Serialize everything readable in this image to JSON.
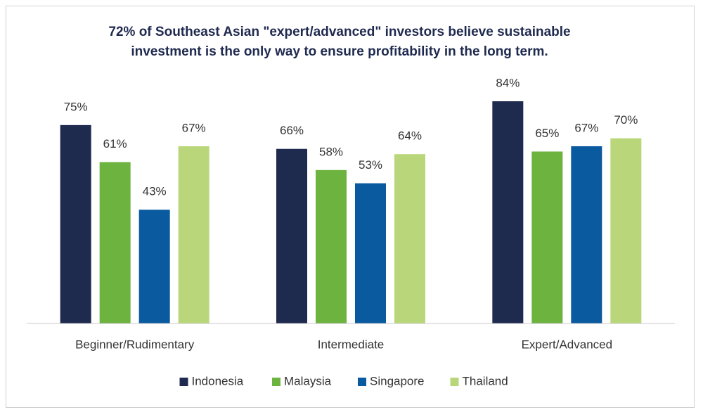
{
  "chart_data": {
    "type": "bar",
    "title": "72% of Southeast Asian \"expert/advanced\" investors believe sustainable investment is the only way to ensure profitability in the long term.",
    "categories": [
      "Beginner/Rudimentary",
      "Intermediate",
      "Expert/Advanced"
    ],
    "series": [
      {
        "name": "Indonesia",
        "color": "#1f2a4f",
        "values": [
          75,
          66,
          84
        ],
        "value_labels": [
          "75%",
          "66%",
          "84%"
        ]
      },
      {
        "name": "Malaysia",
        "color": "#6db33f",
        "values": [
          61,
          58,
          65
        ],
        "value_labels": [
          "61%",
          "58%",
          "65%"
        ]
      },
      {
        "name": "Singapore",
        "color": "#0a5aa0",
        "values": [
          43,
          53,
          67
        ],
        "value_labels": [
          "43%",
          "53%",
          "67%"
        ]
      },
      {
        "name": "Thailand",
        "color": "#b9d77a",
        "values": [
          67,
          64,
          70
        ],
        "value_labels": [
          "67%",
          "64%",
          "70%"
        ]
      }
    ],
    "legend": "bottom"
  }
}
